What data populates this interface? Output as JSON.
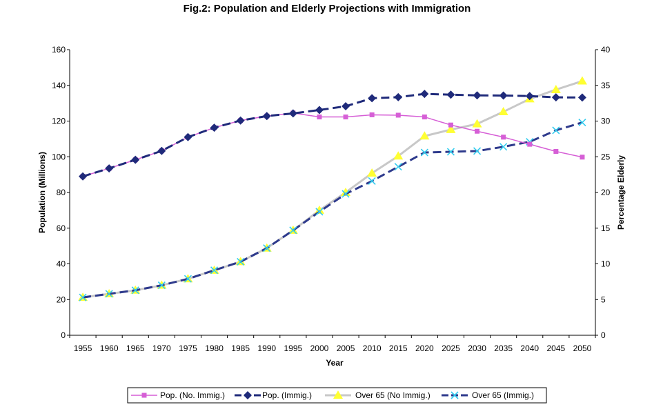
{
  "chart_data": {
    "type": "line",
    "title": "Fig.2: Population and Elderly Projections with Immigration",
    "xlabel": "Year",
    "ylabel": "Population (Millions)",
    "y2label": "Percentage Elderly",
    "x": [
      1955,
      1960,
      1965,
      1970,
      1975,
      1980,
      1985,
      1990,
      1995,
      2000,
      2005,
      2010,
      2015,
      2020,
      2025,
      2030,
      2035,
      2040,
      2045,
      2050
    ],
    "x_tick_labels": [
      "1955",
      "1960",
      "1965",
      "1970",
      "1975",
      "1980",
      "1985",
      "1990",
      "1995",
      "2000",
      "2005",
      "2010",
      "2015",
      "2020",
      "2025",
      "2030",
      "2035",
      "2040",
      "2045",
      "2050"
    ],
    "ylim": [
      0,
      160
    ],
    "y_ticks": [
      0,
      20,
      40,
      60,
      80,
      100,
      120,
      140,
      160
    ],
    "y_tick_labels": [
      "0",
      "20",
      "40",
      "60",
      "80",
      "100",
      "120",
      "140",
      "160"
    ],
    "y2lim": [
      0,
      40
    ],
    "y2_ticks": [
      0,
      5,
      10,
      15,
      20,
      25,
      30,
      35,
      40
    ],
    "y2_tick_labels": [
      "0",
      "5",
      "10",
      "15",
      "20",
      "25",
      "30",
      "35",
      "40"
    ],
    "grid": false,
    "legend_position": "bottom",
    "series": [
      {
        "name": "Pop. (No. Immig.)",
        "axis": "left",
        "color": "#d65fd6",
        "marker": "square",
        "style": "solid-thin",
        "values": [
          89,
          93.5,
          98.3,
          103.3,
          111,
          116.3,
          120.3,
          122.8,
          124.5,
          122.3,
          122.3,
          123.5,
          123.3,
          122.3,
          117.8,
          114.3,
          111,
          107,
          103,
          99.8
        ]
      },
      {
        "name": "Pop. (Immig.)",
        "axis": "left",
        "color": "#1f2a7a",
        "marker": "diamond",
        "style": "dashed-thick",
        "values": [
          89,
          93.5,
          98.3,
          103.3,
          111,
          116.3,
          120.3,
          122.8,
          124.3,
          126.2,
          128.3,
          132.8,
          133.4,
          135.2,
          134.8,
          134.4,
          134.3,
          134,
          133.3,
          133.2
        ]
      },
      {
        "name": "Over 65 (No Immig.)",
        "axis": "right",
        "color": "#c8c8c8",
        "marker_color": "#ffff33",
        "marker": "triangle",
        "style": "solid-thick",
        "values": [
          5.3,
          5.8,
          6.3,
          7,
          7.9,
          9.1,
          10.3,
          12.2,
          14.7,
          17.5,
          20,
          22.7,
          25.1,
          27.9,
          28.8,
          29.6,
          31.3,
          33.1,
          34.4,
          35.6
        ]
      },
      {
        "name": "Over 65 (Immig.)",
        "axis": "right",
        "color": "#2e3a8c",
        "marker_color": "#33ccee",
        "marker": "x",
        "style": "dashed-thick",
        "values": [
          5.3,
          5.8,
          6.3,
          7,
          7.9,
          9.1,
          10.3,
          12.2,
          14.7,
          17.3,
          19.8,
          21.6,
          23.6,
          25.6,
          25.7,
          25.8,
          26.4,
          27.1,
          28.7,
          29.8
        ]
      }
    ]
  }
}
